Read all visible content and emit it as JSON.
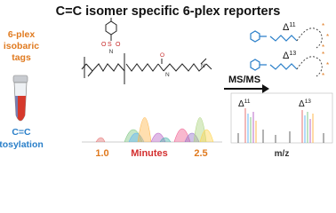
{
  "title": "C=C isomer specific 6-plex reporters",
  "left": {
    "tags": [
      "6-plex",
      "isobaric",
      "tags"
    ],
    "tosylation": [
      "C=C",
      "tosylation"
    ]
  },
  "arrow": {
    "label": "MS/MS"
  },
  "molecules": [
    {
      "symbol": "Δ",
      "sup": "11"
    },
    {
      "symbol": "Δ",
      "sup": "13"
    }
  ],
  "chromatogram": {
    "start": "1.0",
    "axis_label": "Minutes",
    "end": "2.5"
  },
  "spectrum": {
    "peaks": [
      {
        "symbol": "Δ",
        "sup": "11"
      },
      {
        "symbol": "Δ",
        "sup": "13"
      }
    ],
    "axis_label": "m/z"
  }
}
